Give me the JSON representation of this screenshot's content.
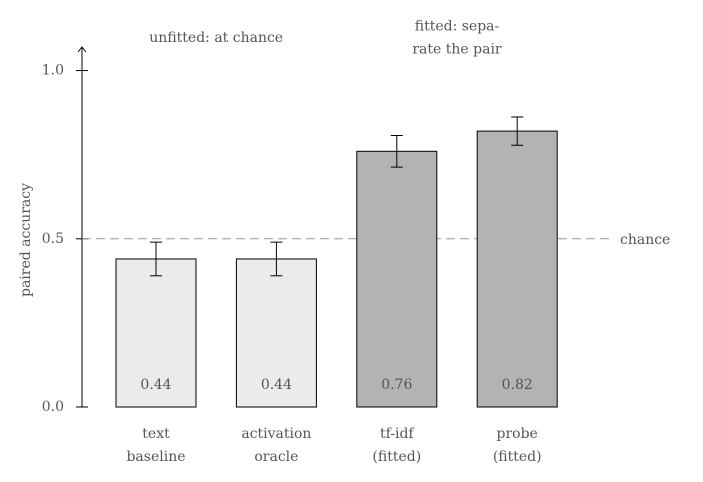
{
  "chart_data": {
    "type": "bar",
    "ylabel": "paired accuracy",
    "categories": [
      "text baseline",
      "activation oracle",
      "tf-idf (fitted)",
      "probe (fitted)"
    ],
    "values": [
      0.44,
      0.44,
      0.76,
      0.82
    ],
    "value_labels": [
      "0.44",
      "0.44",
      "0.76",
      "0.82"
    ],
    "errors": [
      0.05,
      0.05,
      0.047,
      0.042
    ],
    "colors": [
      "#ebebeb",
      "#ebebeb",
      "#b3b3b3",
      "#b3b3b3"
    ],
    "ylim": [
      0,
      1.07
    ],
    "yticks": [
      {
        "value": 0,
        "label": "0.0"
      },
      {
        "value": 0.5,
        "label": "0.5"
      },
      {
        "value": 1,
        "label": "1.0"
      }
    ],
    "reference_line": {
      "value": 0.5,
      "label": "chance"
    },
    "annotations": [
      {
        "lines": [
          "unfitted: at chance"
        ],
        "x": 0.5
      },
      {
        "lines": [
          "fitted: sepa-",
          "rate the pair"
        ],
        "x": 2.5
      }
    ]
  }
}
